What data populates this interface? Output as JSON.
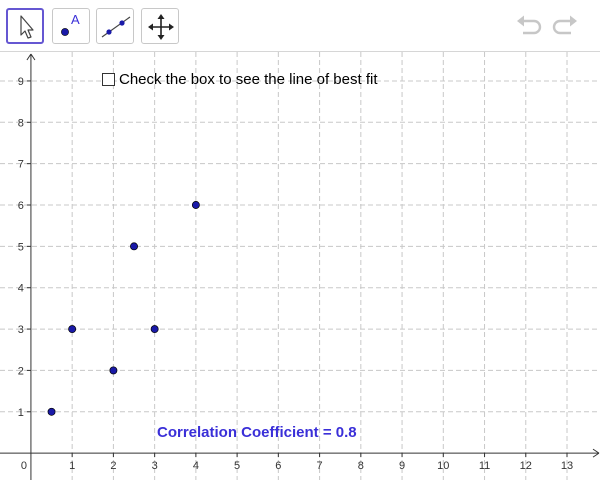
{
  "toolbar": {
    "tools": [
      {
        "name": "move-tool",
        "icon": "pointer-arrow-icon",
        "selected": true
      },
      {
        "name": "point-tool",
        "icon": "point-icon",
        "label": "A",
        "selected": false
      },
      {
        "name": "line-tool",
        "icon": "line-through-two-points-icon",
        "selected": false
      },
      {
        "name": "move-graphics-view-tool",
        "icon": "move-arrows-icon",
        "selected": false
      }
    ],
    "undo_icon": "undo-icon",
    "redo_icon": "redo-icon"
  },
  "checkbox": {
    "label": "Check the box to see the line of best fit",
    "checked": false
  },
  "correlation_label": "Correlation Coefficient = 0.8",
  "colors": {
    "accent": "#6557d2",
    "point": "#1a1aa8",
    "correlation_text": "#3a2fd8",
    "grid": "#c8c8c8"
  },
  "chart_data": {
    "type": "scatter",
    "title": "",
    "xlabel": "",
    "ylabel": "",
    "x_ticks": [
      0,
      1,
      2,
      3,
      4,
      5,
      6,
      7,
      8,
      9,
      10,
      11,
      12,
      13
    ],
    "y_ticks": [
      1,
      2,
      3,
      4,
      5,
      6,
      7,
      8,
      9
    ],
    "xlim": [
      -0.75,
      13.8
    ],
    "ylim": [
      -0.65,
      9.7
    ],
    "grid": true,
    "points": [
      {
        "x": 0.5,
        "y": 1
      },
      {
        "x": 1,
        "y": 3
      },
      {
        "x": 2,
        "y": 2
      },
      {
        "x": 2.5,
        "y": 5
      },
      {
        "x": 3,
        "y": 3
      },
      {
        "x": 4,
        "y": 6
      }
    ]
  }
}
